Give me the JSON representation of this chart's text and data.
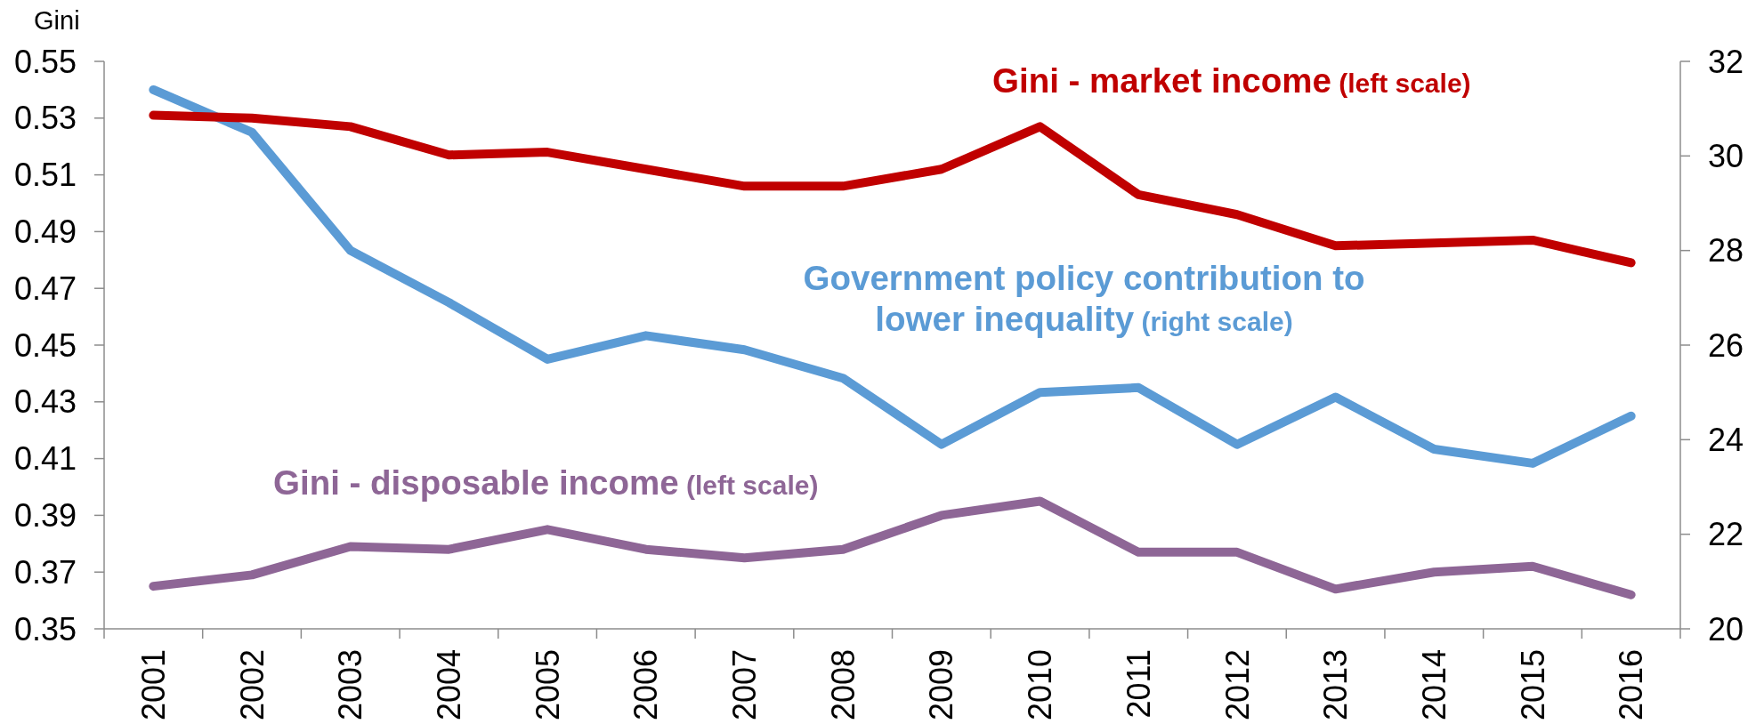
{
  "chart_data": {
    "type": "line",
    "ylabel": "Gini",
    "categories": [
      "2001",
      "2002",
      "2003",
      "2004",
      "2005",
      "2006",
      "2007",
      "2008",
      "2009",
      "2010",
      "2011",
      "2012",
      "2013",
      "2014",
      "2015",
      "2016"
    ],
    "series": [
      {
        "name": "Gini - market income (left scale)",
        "color": "#c00000",
        "values": [
          0.531,
          0.53,
          0.527,
          0.517,
          0.518,
          0.512,
          0.506,
          0.506,
          0.512,
          0.527,
          0.503,
          0.496,
          0.485,
          0.486,
          0.487,
          0.479
        ]
      },
      {
        "name": "Government policy contribution to lower inequality (right scale)",
        "color": "#5b9bd5",
        "axis": "y2",
        "values": [
          31.4,
          30.5,
          28.0,
          26.9,
          25.7,
          26.2,
          25.9,
          25.3,
          23.9,
          25.0,
          25.1,
          23.9,
          24.9,
          23.8,
          23.5,
          24.5
        ]
      },
      {
        "name": "Gini - disposable income (left scale)",
        "color": "#8e6696",
        "values": [
          0.365,
          0.369,
          0.379,
          0.378,
          0.385,
          0.378,
          0.375,
          0.378,
          0.39,
          0.395,
          0.377,
          0.377,
          0.364,
          0.37,
          0.372,
          0.362
        ]
      }
    ],
    "ylim": [
      0.35,
      0.55
    ],
    "yticks": [
      0.35,
      0.37,
      0.39,
      0.41,
      0.43,
      0.45,
      0.47,
      0.49,
      0.51,
      0.53,
      0.55
    ],
    "y2lim": [
      20,
      32
    ],
    "y2ticks": [
      20,
      22,
      24,
      26,
      28,
      30,
      32
    ]
  }
}
